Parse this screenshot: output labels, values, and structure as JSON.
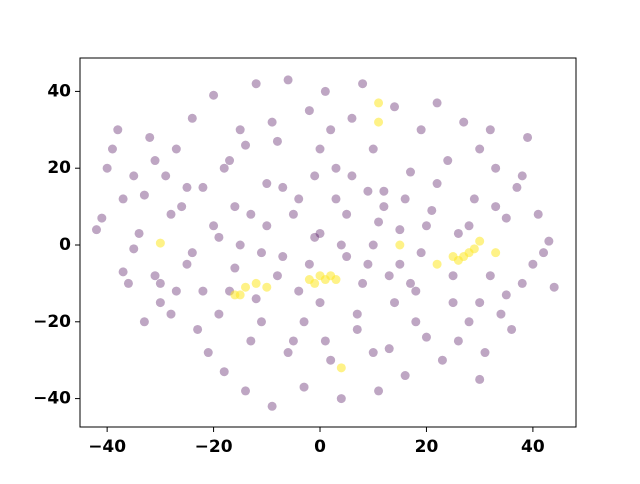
{
  "chart_data": {
    "type": "scatter",
    "xlim": [
      -45.1,
      48.1
    ],
    "ylim": [
      -47.4,
      48.7
    ],
    "xticks": [
      {
        "value": -40,
        "label": "−40"
      },
      {
        "value": -20,
        "label": "−20"
      },
      0,
      20,
      40
    ],
    "yticks": [
      {
        "value": -40,
        "label": "−40"
      },
      {
        "value": -20,
        "label": "−20"
      },
      0,
      20,
      40
    ],
    "series": [
      {
        "color": "#440154",
        "x": [
          -42,
          -41,
          -40,
          -39,
          -38,
          -37,
          -36,
          -35,
          -34,
          -33,
          -32,
          -31,
          -30,
          -29,
          -28,
          -27,
          -26,
          -25,
          -24,
          -23,
          -22,
          -21,
          -20,
          -19,
          -18,
          -17,
          -16,
          -15,
          -14,
          -13,
          -12,
          -11,
          -10,
          -9,
          -8,
          -7,
          -6,
          -5,
          -4,
          -3,
          -2,
          -1,
          0,
          1,
          2,
          3,
          4,
          5,
          6,
          7,
          8,
          9,
          10,
          11,
          12,
          13,
          14,
          15,
          16,
          17,
          18,
          19,
          20,
          21,
          22,
          23,
          24,
          25,
          26,
          27,
          28,
          29,
          30,
          31,
          32,
          33,
          34,
          35,
          36,
          37,
          38,
          39,
          40,
          41,
          42,
          43,
          44,
          38,
          35,
          30,
          -10,
          -5,
          0,
          5,
          10,
          -8,
          3,
          8,
          -15,
          15,
          -20,
          20,
          -12,
          12,
          -3,
          6,
          -18,
          18,
          -25,
          25,
          0,
          -6,
          7,
          -14,
          14,
          -22,
          22,
          -28,
          28,
          -2,
          4,
          -7,
          9,
          -11,
          13,
          -16,
          16,
          -19,
          19,
          -24,
          -33,
          -35,
          -37,
          32,
          30,
          -27,
          26,
          -30,
          33,
          -31,
          1,
          -1,
          2,
          -4,
          10,
          -9,
          11,
          -13,
          17,
          -17
        ],
        "values": [
          4,
          7,
          20,
          25,
          30,
          -7,
          -10,
          -1,
          3,
          13,
          28,
          -8,
          -15,
          18,
          -18,
          25,
          10,
          -5,
          33,
          -22,
          15,
          -28,
          39,
          2,
          -33,
          22,
          -6,
          30,
          -38,
          8,
          42,
          -20,
          16,
          -42,
          27,
          -3,
          43,
          -25,
          12,
          -37,
          35,
          2,
          -15,
          40,
          -30,
          20,
          -40,
          8,
          33,
          -18,
          42,
          -5,
          25,
          -38,
          14,
          -27,
          36,
          4,
          -34,
          19,
          -12,
          30,
          -24,
          9,
          37,
          -30,
          22,
          -15,
          3,
          32,
          -20,
          12,
          25,
          -28,
          -8,
          20,
          -18,
          7,
          -22,
          15,
          -10,
          28,
          -5,
          8,
          -2,
          1,
          -11,
          18,
          -13,
          -35,
          5,
          8,
          3,
          -3,
          0,
          -8,
          12,
          -10,
          0,
          -5,
          5,
          5,
          -14,
          10,
          -20,
          18,
          20,
          -20,
          15,
          -8,
          25,
          -28,
          -22,
          26,
          -15,
          -12,
          16,
          8,
          5,
          -5,
          0,
          15,
          14,
          -2,
          -8,
          10,
          12,
          -18,
          -2,
          -2,
          -20,
          18,
          12,
          30,
          -15,
          -12,
          -25,
          -10,
          10,
          22,
          -25,
          18,
          30,
          -12,
          -28,
          32,
          6,
          -25,
          -10,
          -12
        ]
      },
      {
        "color": "#fde725",
        "x": [
          -30,
          -12,
          -14,
          -15,
          -10,
          0,
          -2,
          1,
          -1,
          2,
          3,
          11,
          11,
          25,
          26,
          27,
          29,
          28,
          30,
          33,
          4,
          -16,
          22,
          15
        ],
        "values": [
          0.5,
          -10,
          -11,
          -13,
          -11,
          -8,
          -9,
          -9,
          -10,
          -8,
          -9,
          37,
          32,
          -3,
          -4,
          -3,
          -1,
          -2,
          1,
          -2,
          -32,
          -13,
          -5,
          0
        ]
      }
    ]
  }
}
